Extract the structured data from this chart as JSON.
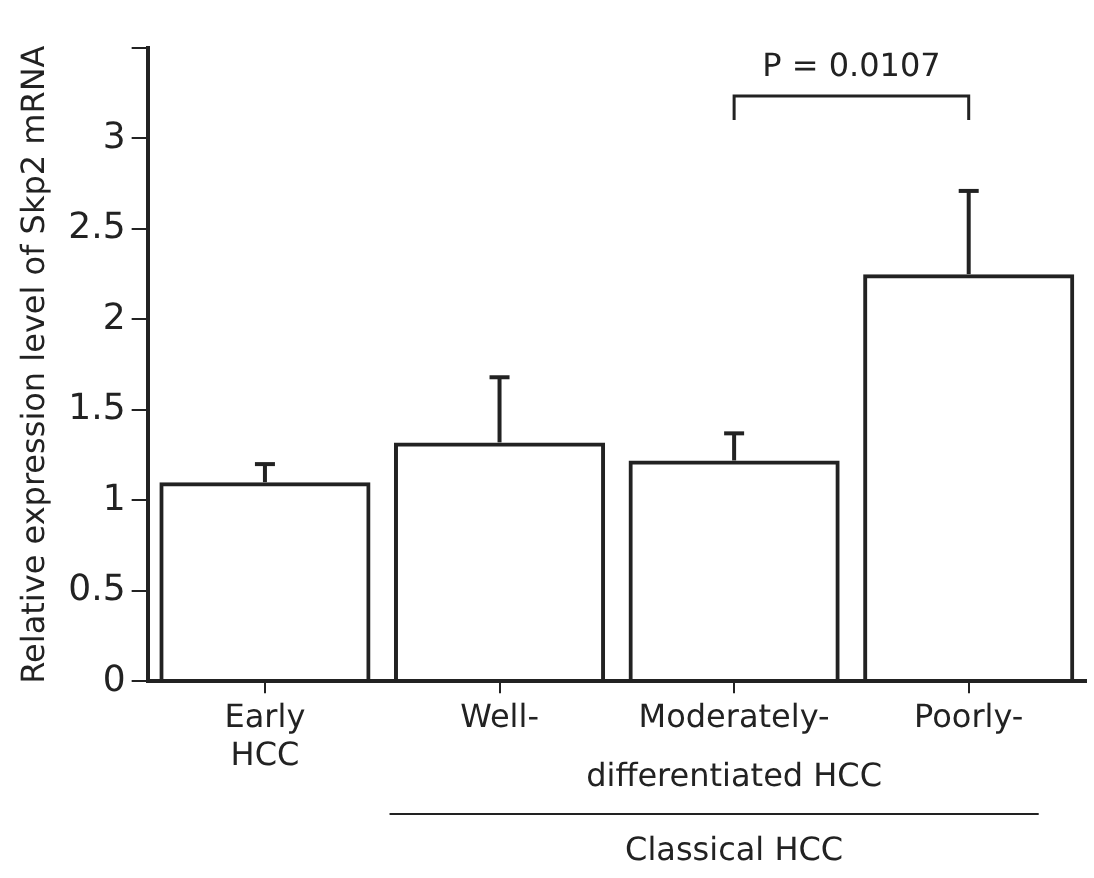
{
  "chart_data": {
    "type": "bar",
    "ylabel": "Relative expression level of Skp2 mRNA",
    "categories": [
      "Early HCC",
      "Well-",
      "Moderately-",
      "Poorly-"
    ],
    "values": [
      1.1,
      1.32,
      1.22,
      2.25
    ],
    "errors": [
      [
        1.1,
        1.2
      ],
      [
        1.32,
        1.68
      ],
      [
        1.22,
        1.37
      ],
      [
        2.25,
        2.71
      ]
    ],
    "color": "#222222",
    "ylim": [
      0,
      3.5
    ],
    "yticks": [
      0,
      0.5,
      1,
      1.5,
      2,
      2.5,
      3,
      {
        "value": 3.5,
        "label": null
      }
    ],
    "grid": false,
    "legend": false,
    "annotations": [
      "differentiated HCC",
      "Classical HCC",
      "P = 0.0107"
    ]
  }
}
